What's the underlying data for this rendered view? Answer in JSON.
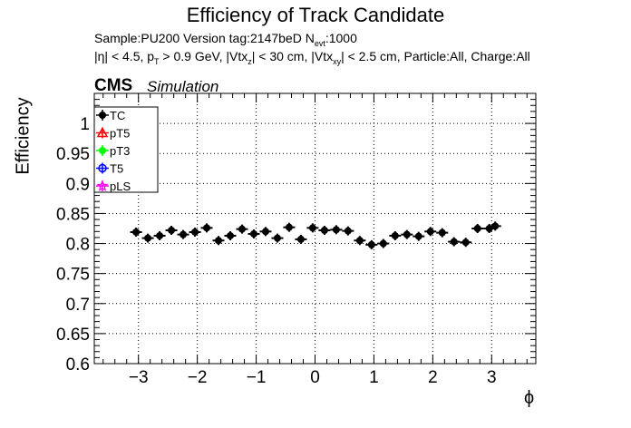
{
  "chart_data": {
    "type": "scatter",
    "title": "Efficiency of Track Candidate",
    "info_line1": "Sample:PU200   Version tag:2147beD  N",
    "info_line1_sub": "evt",
    "info_line1_end": ":1000",
    "info_line2_a": "|η| < 4.5, p",
    "info_line2_sub1": "T",
    "info_line2_b": " > 0.9 GeV, |Vtx",
    "info_line2_sub2": "z",
    "info_line2_c": "| < 30 cm, |Vtx",
    "info_line2_sub3": "xy",
    "info_line2_d": "| < 2.5 cm, Particle:All, Charge:All",
    "cms_label": "CMS",
    "sim_label": "Simulation",
    "xlabel": "ϕ",
    "ylabel": "Efficiency",
    "xlim": [
      -3.75,
      3.75
    ],
    "ylim": [
      0.6,
      1.05
    ],
    "xticks": [
      -3,
      -2,
      -1,
      0,
      1,
      2,
      3
    ],
    "xtick_labels": [
      "−3",
      "−2",
      "−1",
      "0",
      "1",
      "2",
      "3"
    ],
    "yticks": [
      0.6,
      0.65,
      0.7,
      0.75,
      0.8,
      0.85,
      0.9,
      0.95,
      1
    ],
    "ytick_labels": [
      "0.6",
      "0.65",
      "0.7",
      "0.75",
      "0.8",
      "0.85",
      "0.9",
      "0.95",
      "1"
    ],
    "grid": true,
    "legend_position": "top-left",
    "series": [
      {
        "name": "TC",
        "color": "#000000",
        "marker": "filled-circle",
        "x_error": 0.1,
        "x": [
          -3.04,
          -2.84,
          -2.64,
          -2.44,
          -2.24,
          -2.04,
          -1.84,
          -1.64,
          -1.44,
          -1.24,
          -1.04,
          -0.84,
          -0.64,
          -0.44,
          -0.24,
          -0.04,
          0.16,
          0.36,
          0.56,
          0.76,
          0.96,
          1.16,
          1.36,
          1.56,
          1.76,
          1.96,
          2.16,
          2.36,
          2.56,
          2.76,
          2.96,
          3.06
        ],
        "y": [
          0.819,
          0.809,
          0.813,
          0.822,
          0.815,
          0.819,
          0.826,
          0.805,
          0.813,
          0.824,
          0.816,
          0.82,
          0.809,
          0.827,
          0.807,
          0.826,
          0.822,
          0.823,
          0.821,
          0.805,
          0.798,
          0.8,
          0.813,
          0.815,
          0.812,
          0.82,
          0.818,
          0.803,
          0.802,
          0.825,
          0.825,
          0.829
        ]
      },
      {
        "name": "pT5",
        "color": "#ff0000",
        "marker": "open-triangle",
        "x": [],
        "y": []
      },
      {
        "name": "pT3",
        "color": "#00ff00",
        "marker": "filled-circle",
        "x": [],
        "y": []
      },
      {
        "name": "T5",
        "color": "#0000ff",
        "marker": "open-circle",
        "x": [],
        "y": []
      },
      {
        "name": "pLS",
        "color": "#ff00ff",
        "marker": "open-star",
        "x": [],
        "y": []
      }
    ]
  }
}
